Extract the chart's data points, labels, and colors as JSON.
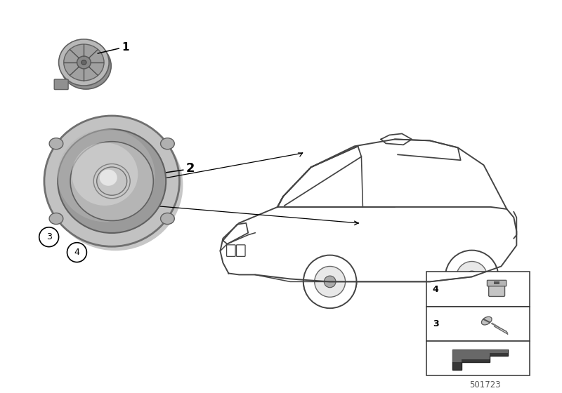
{
  "bg_color": "#ffffff",
  "diagram_id": "501723",
  "fig_width": 8.0,
  "fig_height": 5.6,
  "line_color": "#444444",
  "gray_dark": "#707070",
  "gray_mid": "#a0a0a0",
  "gray_light": "#c8c8c8",
  "gray_very_light": "#e0e0e0"
}
